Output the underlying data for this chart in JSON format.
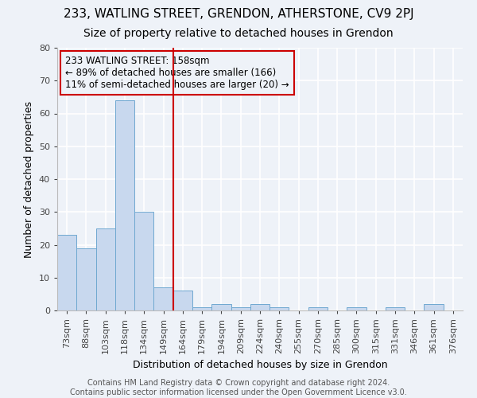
{
  "title": "233, WATLING STREET, GRENDON, ATHERSTONE, CV9 2PJ",
  "subtitle": "Size of property relative to detached houses in Grendon",
  "xlabel": "Distribution of detached houses by size in Grendon",
  "ylabel": "Number of detached properties",
  "bins": [
    "73sqm",
    "88sqm",
    "103sqm",
    "118sqm",
    "134sqm",
    "149sqm",
    "164sqm",
    "179sqm",
    "194sqm",
    "209sqm",
    "224sqm",
    "240sqm",
    "255sqm",
    "270sqm",
    "285sqm",
    "300sqm",
    "315sqm",
    "331sqm",
    "346sqm",
    "361sqm",
    "376sqm"
  ],
  "values": [
    23,
    19,
    25,
    64,
    30,
    7,
    6,
    1,
    2,
    1,
    2,
    1,
    0,
    1,
    0,
    1,
    0,
    1,
    0,
    2,
    0
  ],
  "bar_color": "#c8d8ee",
  "bar_edge_color": "#6fa8d0",
  "annotation_text_line1": "233 WATLING STREET: 158sqm",
  "annotation_text_line2": "← 89% of detached houses are smaller (166)",
  "annotation_text_line3": "11% of semi-detached houses are larger (20) →",
  "annotation_box_color": "#cc0000",
  "vline_color": "#cc0000",
  "vline_x_index": 6,
  "ylim": [
    0,
    80
  ],
  "footer_line1": "Contains HM Land Registry data © Crown copyright and database right 2024.",
  "footer_line2": "Contains public sector information licensed under the Open Government Licence v3.0.",
  "bg_color": "#eef2f8",
  "grid_color": "#ffffff",
  "title_fontsize": 11,
  "subtitle_fontsize": 10,
  "axis_label_fontsize": 9,
  "tick_fontsize": 8,
  "annotation_fontsize": 8.5,
  "footer_fontsize": 7
}
